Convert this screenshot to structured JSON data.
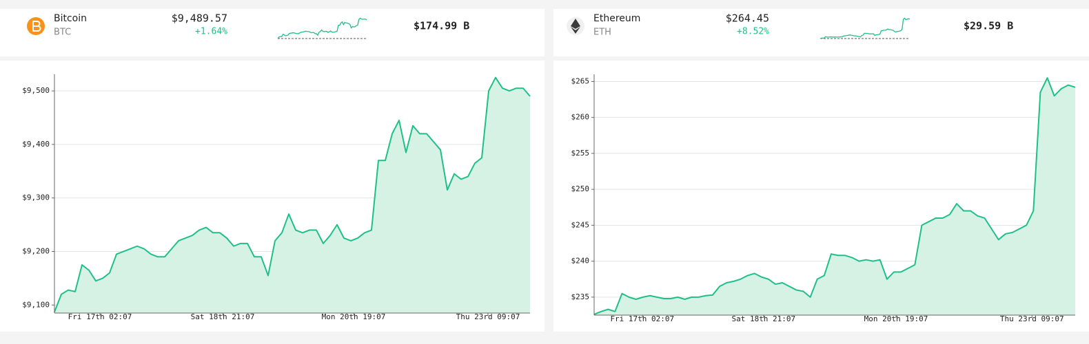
{
  "panels": [
    {
      "name": "Bitcoin",
      "symbol": "BTC",
      "price": "$9,489.57",
      "change": "+1.64%",
      "market_cap": "$174.99 B",
      "icon_color": "#f7931a",
      "chart": {
        "type": "line",
        "color": "#1fbf8a",
        "fill": "#d6f2e5",
        "values": [
          9087,
          9120,
          9128,
          9125,
          9175,
          9165,
          9145,
          9150,
          9160,
          9195,
          9200,
          9205,
          9210,
          9205,
          9195,
          9190,
          9190,
          9205,
          9220,
          9225,
          9230,
          9240,
          9245,
          9235,
          9235,
          9225,
          9210,
          9215,
          9215,
          9190,
          9190,
          9155,
          9220,
          9235,
          9270,
          9240,
          9235,
          9240,
          9240,
          9215,
          9230,
          9250,
          9225,
          9220,
          9225,
          9235,
          9240,
          9370,
          9370,
          9420,
          9445,
          9385,
          9435,
          9420,
          9420,
          9405,
          9390,
          9315,
          9345,
          9335,
          9340,
          9365,
          9375,
          9500,
          9525,
          9505,
          9500,
          9505,
          9505,
          9490
        ],
        "xlim": [
          0,
          69
        ],
        "ylim": [
          9085,
          9531
        ],
        "yticks": [
          {
            "value": 9100,
            "label": "$9,100"
          },
          {
            "value": 9200,
            "label": "$9,200"
          },
          {
            "value": 9300,
            "label": "$9,300"
          },
          {
            "value": 9400,
            "label": "$9,400"
          },
          {
            "value": 9500,
            "label": "$9,500"
          }
        ],
        "xticks": [
          {
            "value": 6.6,
            "label": "Fri 17th 02:07"
          },
          {
            "value": 24.4,
            "label": "Sat 18th 21:07"
          },
          {
            "value": 43.4,
            "label": "Mon 20th 19:07"
          },
          {
            "value": 62.9,
            "label": "Thu 23rd 09:07"
          }
        ],
        "grid": true
      }
    },
    {
      "name": "Ethereum",
      "symbol": "ETH",
      "price": "$264.45",
      "change": "+8.52%",
      "market_cap": "$29.59 B",
      "icon_color": "#3c3c3d",
      "chart": {
        "type": "line",
        "color": "#1fbf8a",
        "fill": "#d6f2e5",
        "values": [
          232.6,
          233.0,
          233.3,
          233.0,
          235.5,
          235.0,
          234.7,
          235.0,
          235.2,
          235.0,
          234.8,
          234.8,
          235.0,
          234.7,
          235.0,
          235.0,
          235.2,
          235.3,
          236.5,
          237.0,
          237.2,
          237.5,
          238.0,
          238.3,
          237.8,
          237.5,
          236.8,
          237.0,
          236.5,
          236.0,
          235.8,
          235.0,
          237.5,
          238.0,
          241.0,
          240.8,
          240.8,
          240.5,
          240.0,
          240.2,
          240.0,
          240.2,
          237.5,
          238.5,
          238.5,
          239.0,
          239.5,
          245.0,
          245.5,
          246.0,
          246.0,
          246.5,
          248.0,
          247.0,
          247.0,
          246.3,
          246.0,
          244.5,
          243.0,
          243.8,
          244.0,
          244.5,
          245.0,
          247.0,
          263.5,
          265.5,
          263.0,
          264.0,
          264.5,
          264.2
        ],
        "xlim": [
          0,
          69
        ],
        "ylim": [
          232.5,
          266
        ],
        "yticks": [
          {
            "value": 235,
            "label": "$235"
          },
          {
            "value": 240,
            "label": "$240"
          },
          {
            "value": 245,
            "label": "$245"
          },
          {
            "value": 250,
            "label": "$250"
          },
          {
            "value": 255,
            "label": "$255"
          },
          {
            "value": 260,
            "label": "$260"
          },
          {
            "value": 265,
            "label": "$265"
          }
        ],
        "xticks": [
          {
            "value": 6.9,
            "label": "Fri 17th 02:07"
          },
          {
            "value": 24.3,
            "label": "Sat 18th 21:07"
          },
          {
            "value": 43.3,
            "label": "Mon 20th 19:07"
          },
          {
            "value": 62.8,
            "label": "Thu 23rd 09:07"
          }
        ],
        "grid": true
      }
    }
  ]
}
